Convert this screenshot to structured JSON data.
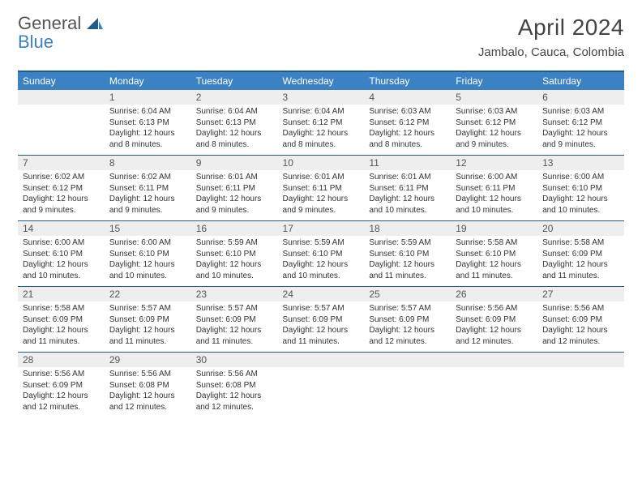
{
  "brand": {
    "name1": "General",
    "name2": "Blue"
  },
  "title": "April 2024",
  "location": "Jambalo, Cauca, Colombia",
  "colors": {
    "header_bg": "#3b82c4",
    "border": "#1f5c8b",
    "daynum_bg": "#eeeeee",
    "text": "#333333",
    "page_bg": "#ffffff"
  },
  "dayNames": [
    "Sunday",
    "Monday",
    "Tuesday",
    "Wednesday",
    "Thursday",
    "Friday",
    "Saturday"
  ],
  "weeks": [
    [
      null,
      {
        "n": "1",
        "sr": "Sunrise: 6:04 AM",
        "ss": "Sunset: 6:13 PM",
        "dl": "Daylight: 12 hours and 8 minutes."
      },
      {
        "n": "2",
        "sr": "Sunrise: 6:04 AM",
        "ss": "Sunset: 6:13 PM",
        "dl": "Daylight: 12 hours and 8 minutes."
      },
      {
        "n": "3",
        "sr": "Sunrise: 6:04 AM",
        "ss": "Sunset: 6:12 PM",
        "dl": "Daylight: 12 hours and 8 minutes."
      },
      {
        "n": "4",
        "sr": "Sunrise: 6:03 AM",
        "ss": "Sunset: 6:12 PM",
        "dl": "Daylight: 12 hours and 8 minutes."
      },
      {
        "n": "5",
        "sr": "Sunrise: 6:03 AM",
        "ss": "Sunset: 6:12 PM",
        "dl": "Daylight: 12 hours and 9 minutes."
      },
      {
        "n": "6",
        "sr": "Sunrise: 6:03 AM",
        "ss": "Sunset: 6:12 PM",
        "dl": "Daylight: 12 hours and 9 minutes."
      }
    ],
    [
      {
        "n": "7",
        "sr": "Sunrise: 6:02 AM",
        "ss": "Sunset: 6:12 PM",
        "dl": "Daylight: 12 hours and 9 minutes."
      },
      {
        "n": "8",
        "sr": "Sunrise: 6:02 AM",
        "ss": "Sunset: 6:11 PM",
        "dl": "Daylight: 12 hours and 9 minutes."
      },
      {
        "n": "9",
        "sr": "Sunrise: 6:01 AM",
        "ss": "Sunset: 6:11 PM",
        "dl": "Daylight: 12 hours and 9 minutes."
      },
      {
        "n": "10",
        "sr": "Sunrise: 6:01 AM",
        "ss": "Sunset: 6:11 PM",
        "dl": "Daylight: 12 hours and 9 minutes."
      },
      {
        "n": "11",
        "sr": "Sunrise: 6:01 AM",
        "ss": "Sunset: 6:11 PM",
        "dl": "Daylight: 12 hours and 10 minutes."
      },
      {
        "n": "12",
        "sr": "Sunrise: 6:00 AM",
        "ss": "Sunset: 6:11 PM",
        "dl": "Daylight: 12 hours and 10 minutes."
      },
      {
        "n": "13",
        "sr": "Sunrise: 6:00 AM",
        "ss": "Sunset: 6:10 PM",
        "dl": "Daylight: 12 hours and 10 minutes."
      }
    ],
    [
      {
        "n": "14",
        "sr": "Sunrise: 6:00 AM",
        "ss": "Sunset: 6:10 PM",
        "dl": "Daylight: 12 hours and 10 minutes."
      },
      {
        "n": "15",
        "sr": "Sunrise: 6:00 AM",
        "ss": "Sunset: 6:10 PM",
        "dl": "Daylight: 12 hours and 10 minutes."
      },
      {
        "n": "16",
        "sr": "Sunrise: 5:59 AM",
        "ss": "Sunset: 6:10 PM",
        "dl": "Daylight: 12 hours and 10 minutes."
      },
      {
        "n": "17",
        "sr": "Sunrise: 5:59 AM",
        "ss": "Sunset: 6:10 PM",
        "dl": "Daylight: 12 hours and 10 minutes."
      },
      {
        "n": "18",
        "sr": "Sunrise: 5:59 AM",
        "ss": "Sunset: 6:10 PM",
        "dl": "Daylight: 12 hours and 11 minutes."
      },
      {
        "n": "19",
        "sr": "Sunrise: 5:58 AM",
        "ss": "Sunset: 6:10 PM",
        "dl": "Daylight: 12 hours and 11 minutes."
      },
      {
        "n": "20",
        "sr": "Sunrise: 5:58 AM",
        "ss": "Sunset: 6:09 PM",
        "dl": "Daylight: 12 hours and 11 minutes."
      }
    ],
    [
      {
        "n": "21",
        "sr": "Sunrise: 5:58 AM",
        "ss": "Sunset: 6:09 PM",
        "dl": "Daylight: 12 hours and 11 minutes."
      },
      {
        "n": "22",
        "sr": "Sunrise: 5:57 AM",
        "ss": "Sunset: 6:09 PM",
        "dl": "Daylight: 12 hours and 11 minutes."
      },
      {
        "n": "23",
        "sr": "Sunrise: 5:57 AM",
        "ss": "Sunset: 6:09 PM",
        "dl": "Daylight: 12 hours and 11 minutes."
      },
      {
        "n": "24",
        "sr": "Sunrise: 5:57 AM",
        "ss": "Sunset: 6:09 PM",
        "dl": "Daylight: 12 hours and 11 minutes."
      },
      {
        "n": "25",
        "sr": "Sunrise: 5:57 AM",
        "ss": "Sunset: 6:09 PM",
        "dl": "Daylight: 12 hours and 12 minutes."
      },
      {
        "n": "26",
        "sr": "Sunrise: 5:56 AM",
        "ss": "Sunset: 6:09 PM",
        "dl": "Daylight: 12 hours and 12 minutes."
      },
      {
        "n": "27",
        "sr": "Sunrise: 5:56 AM",
        "ss": "Sunset: 6:09 PM",
        "dl": "Daylight: 12 hours and 12 minutes."
      }
    ],
    [
      {
        "n": "28",
        "sr": "Sunrise: 5:56 AM",
        "ss": "Sunset: 6:09 PM",
        "dl": "Daylight: 12 hours and 12 minutes."
      },
      {
        "n": "29",
        "sr": "Sunrise: 5:56 AM",
        "ss": "Sunset: 6:08 PM",
        "dl": "Daylight: 12 hours and 12 minutes."
      },
      {
        "n": "30",
        "sr": "Sunrise: 5:56 AM",
        "ss": "Sunset: 6:08 PM",
        "dl": "Daylight: 12 hours and 12 minutes."
      },
      null,
      null,
      null,
      null
    ]
  ]
}
